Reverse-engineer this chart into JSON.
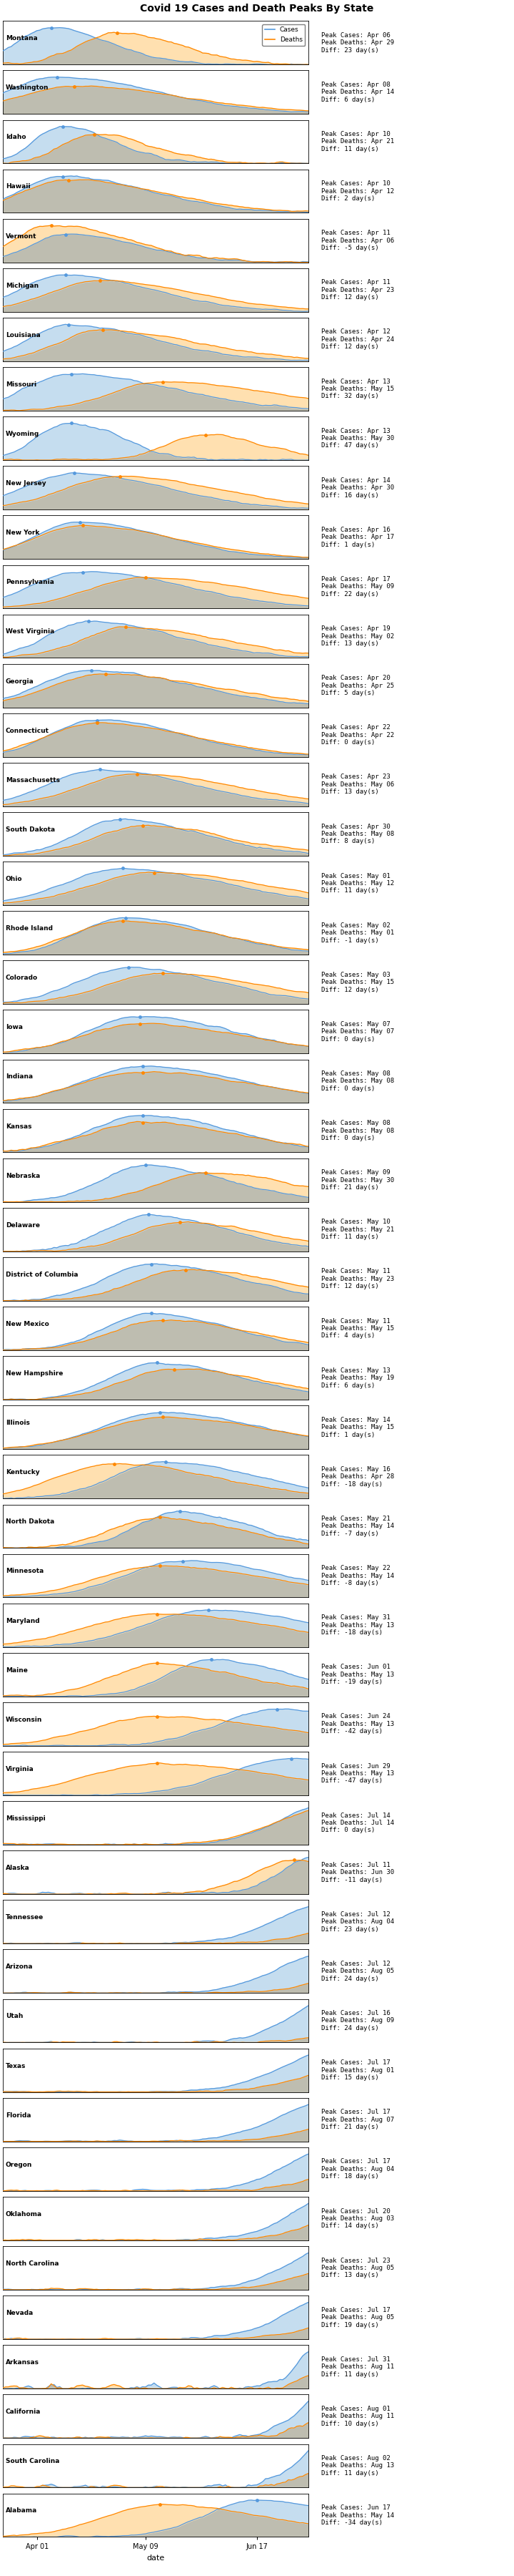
{
  "title": "Covid 19 Cases and Death Peaks By State",
  "states": [
    {
      "name": "Montana",
      "peak_cases": "Apr 06",
      "peak_deaths": "Apr 29",
      "diff": 23
    },
    {
      "name": "Washington",
      "peak_cases": "Apr 08",
      "peak_deaths": "Apr 14",
      "diff": 6
    },
    {
      "name": "Idaho",
      "peak_cases": "Apr 10",
      "peak_deaths": "Apr 21",
      "diff": 11
    },
    {
      "name": "Hawaii",
      "peak_cases": "Apr 10",
      "peak_deaths": "Apr 12",
      "diff": 2
    },
    {
      "name": "Vermont",
      "peak_cases": "Apr 11",
      "peak_deaths": "Apr 06",
      "diff": -5
    },
    {
      "name": "Michigan",
      "peak_cases": "Apr 11",
      "peak_deaths": "Apr 23",
      "diff": 12
    },
    {
      "name": "Louisiana",
      "peak_cases": "Apr 12",
      "peak_deaths": "Apr 24",
      "diff": 12
    },
    {
      "name": "Missouri",
      "peak_cases": "Apr 13",
      "peak_deaths": "May 15",
      "diff": 32
    },
    {
      "name": "Wyoming",
      "peak_cases": "Apr 13",
      "peak_deaths": "May 30",
      "diff": 47
    },
    {
      "name": "New Jersey",
      "peak_cases": "Apr 14",
      "peak_deaths": "Apr 30",
      "diff": 16
    },
    {
      "name": "New York",
      "peak_cases": "Apr 16",
      "peak_deaths": "Apr 17",
      "diff": 1
    },
    {
      "name": "Pennsylvania",
      "peak_cases": "Apr 17",
      "peak_deaths": "May 09",
      "diff": 22
    },
    {
      "name": "West Virginia",
      "peak_cases": "Apr 19",
      "peak_deaths": "May 02",
      "diff": 13
    },
    {
      "name": "Georgia",
      "peak_cases": "Apr 20",
      "peak_deaths": "Apr 25",
      "diff": 5
    },
    {
      "name": "Connecticut",
      "peak_cases": "Apr 22",
      "peak_deaths": "Apr 22",
      "diff": 0
    },
    {
      "name": "Massachusetts",
      "peak_cases": "Apr 23",
      "peak_deaths": "May 06",
      "diff": 13
    },
    {
      "name": "South Dakota",
      "peak_cases": "Apr 30",
      "peak_deaths": "May 08",
      "diff": 8
    },
    {
      "name": "Ohio",
      "peak_cases": "May 01",
      "peak_deaths": "May 12",
      "diff": 11
    },
    {
      "name": "Rhode Island",
      "peak_cases": "May 02",
      "peak_deaths": "May 01",
      "diff": -1
    },
    {
      "name": "Colorado",
      "peak_cases": "May 03",
      "peak_deaths": "May 15",
      "diff": 12
    },
    {
      "name": "Iowa",
      "peak_cases": "May 07",
      "peak_deaths": "May 07",
      "diff": 0
    },
    {
      "name": "Indiana",
      "peak_cases": "May 08",
      "peak_deaths": "May 08",
      "diff": 0
    },
    {
      "name": "Kansas",
      "peak_cases": "May 08",
      "peak_deaths": "May 08",
      "diff": 0
    },
    {
      "name": "Nebraska",
      "peak_cases": "May 09",
      "peak_deaths": "May 30",
      "diff": 21
    },
    {
      "name": "Delaware",
      "peak_cases": "May 10",
      "peak_deaths": "May 21",
      "diff": 11
    },
    {
      "name": "District of Columbia",
      "peak_cases": "May 11",
      "peak_deaths": "May 23",
      "diff": 12
    },
    {
      "name": "New Mexico",
      "peak_cases": "May 11",
      "peak_deaths": "May 15",
      "diff": 4
    },
    {
      "name": "New Hampshire",
      "peak_cases": "May 13",
      "peak_deaths": "May 19",
      "diff": 6
    },
    {
      "name": "Illinois",
      "peak_cases": "May 14",
      "peak_deaths": "May 15",
      "diff": 1
    },
    {
      "name": "Kentucky",
      "peak_cases": "May 16",
      "peak_deaths": "Apr 28",
      "diff": -18
    },
    {
      "name": "North Dakota",
      "peak_cases": "May 21",
      "peak_deaths": "May 14",
      "diff": -7
    },
    {
      "name": "Minnesota",
      "peak_cases": "May 22",
      "peak_deaths": "May 14",
      "diff": -8
    },
    {
      "name": "Maryland",
      "peak_cases": "May 31",
      "peak_deaths": "May 13",
      "diff": -18
    },
    {
      "name": "Maine",
      "peak_cases": "Jun 01",
      "peak_deaths": "May 13",
      "diff": -19
    },
    {
      "name": "Wisconsin",
      "peak_cases": "Jun 24",
      "peak_deaths": "May 13",
      "diff": -42
    },
    {
      "name": "Virginia",
      "peak_cases": "Jun 29",
      "peak_deaths": "May 13",
      "diff": -47
    },
    {
      "name": "Mississippi",
      "peak_cases": "Jul 14",
      "peak_deaths": "Jul 14",
      "diff": 0
    },
    {
      "name": "Alaska",
      "peak_cases": "Jul 11",
      "peak_deaths": "Jun 30",
      "diff": -11
    },
    {
      "name": "Tennessee",
      "peak_cases": "Jul 12",
      "peak_deaths": "Aug 04",
      "diff": 23
    },
    {
      "name": "Arizona",
      "peak_cases": "Jul 12",
      "peak_deaths": "Aug 05",
      "diff": 24
    },
    {
      "name": "Utah",
      "peak_cases": "Jul 16",
      "peak_deaths": "Aug 09",
      "diff": 24
    },
    {
      "name": "Texas",
      "peak_cases": "Jul 17",
      "peak_deaths": "Aug 01",
      "diff": 15
    },
    {
      "name": "Florida",
      "peak_cases": "Jul 17",
      "peak_deaths": "Aug 07",
      "diff": 21
    },
    {
      "name": "Oregon",
      "peak_cases": "Jul 17",
      "peak_deaths": "Aug 04",
      "diff": 18
    },
    {
      "name": "Oklahoma",
      "peak_cases": "Jul 20",
      "peak_deaths": "Aug 03",
      "diff": 14
    },
    {
      "name": "North Carolina",
      "peak_cases": "Jul 23",
      "peak_deaths": "Aug 05",
      "diff": 13
    },
    {
      "name": "Nevada",
      "peak_cases": "Jul 17",
      "peak_deaths": "Aug 05",
      "diff": 19
    },
    {
      "name": "Arkansas",
      "peak_cases": "Jul 31",
      "peak_deaths": "Aug 11",
      "diff": 11
    },
    {
      "name": "California",
      "peak_cases": "Aug 01",
      "peak_deaths": "Aug 11",
      "diff": 10
    },
    {
      "name": "South Carolina",
      "peak_cases": "Aug 02",
      "peak_deaths": "Aug 13",
      "diff": 11
    },
    {
      "name": "Alabama",
      "peak_cases": "Jun 17",
      "peak_deaths": "May 14",
      "diff": -34
    }
  ],
  "colors": {
    "cases_line": "#5599DD",
    "cases_fill": "#C5DDEF",
    "deaths_line": "#FF8800",
    "deaths_fill": "#FFE0B0",
    "overlap_fill": "#BEBDB0",
    "bg": "#FFFFFF"
  },
  "x_start": "2020-03-20",
  "x_end": "2020-06-30",
  "xlabel": "date"
}
